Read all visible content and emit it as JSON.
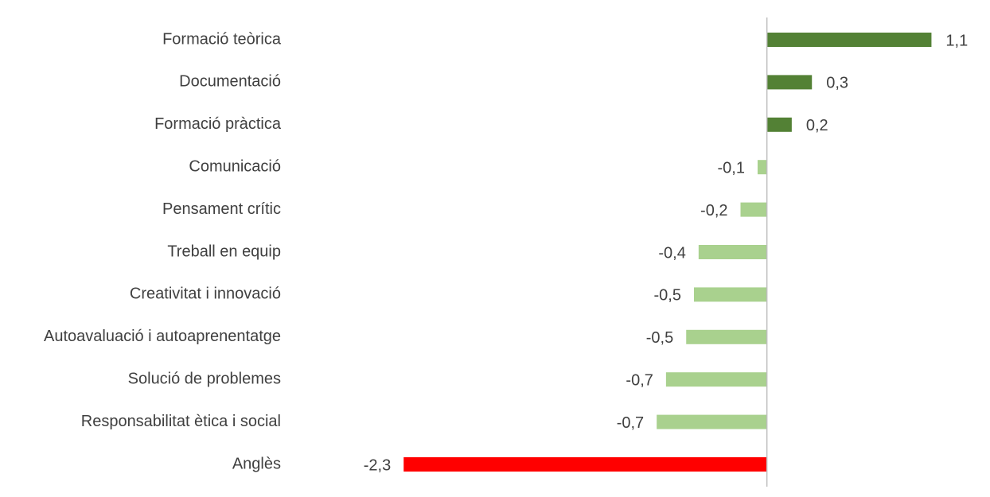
{
  "chart_data": {
    "type": "hbar",
    "categories": [
      "Formació teòrica",
      "Documentació",
      "Formació pràctica",
      "Comunicació",
      "Pensament crític",
      "Treball en equip",
      "Creativitat i innovació",
      "Autoavaluació i autoaprenentatge",
      "Solució de problemes",
      "Responsabilitat ètica i social",
      "Anglès"
    ],
    "values": [
      1.06,
      0.29,
      0.16,
      -0.06,
      -0.17,
      -0.44,
      -0.47,
      -0.52,
      -0.65,
      -0.71,
      -2.34
    ],
    "value_labels": [
      "1,1",
      "0,3",
      "0,2",
      "-0,1",
      "-0,2",
      "-0,4",
      "-0,5",
      "-0,5",
      "-0,7",
      "-0,7",
      "-2,3"
    ],
    "colors": [
      "#538135",
      "#538135",
      "#538135",
      "#a9d18e",
      "#a9d18e",
      "#a9d18e",
      "#a9d18e",
      "#a9d18e",
      "#a9d18e",
      "#a9d18e",
      "#ff0000"
    ],
    "xlim": [
      -2.7,
      1.35
    ]
  }
}
